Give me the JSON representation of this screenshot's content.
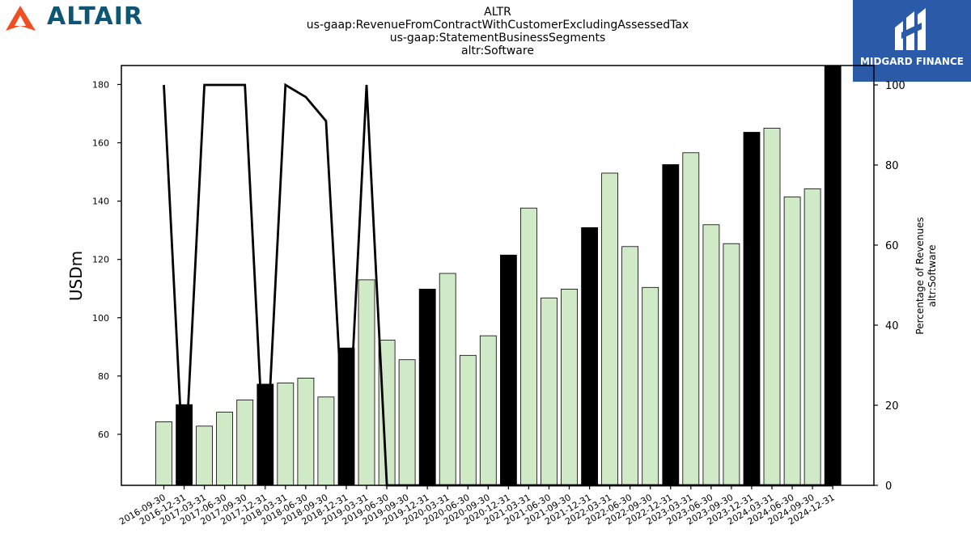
{
  "header": {
    "brand_name": "ALTAIR",
    "badge_name": "MIDGARD FINANCE",
    "colors": {
      "brand": "#0f5675",
      "brand_logo": "#f04e23",
      "badge_bg": "#2a5aa8"
    }
  },
  "chart_data": {
    "type": "bar",
    "title_lines": [
      "ALTR",
      "us-gaap:RevenueFromContractWithCustomerExcludingAssessedTax",
      "us-gaap:StatementBusinessSegments",
      "altr:Software"
    ],
    "ylabel": "USDm",
    "y2label_lines": [
      "Percentage of Revenues",
      "altr:Software"
    ],
    "ylim": [
      42.5,
      186.5
    ],
    "y2lim": [
      0,
      100
    ],
    "yticks": [
      60,
      80,
      100,
      120,
      140,
      160,
      180
    ],
    "y2ticks": [
      0,
      20,
      40,
      60,
      80,
      100
    ],
    "grid": false,
    "categories": [
      "2016-09-30",
      "2016-12-31",
      "2017-03-31",
      "2017-06-30",
      "2017-09-30",
      "2017-12-31",
      "2018-03-31",
      "2018-06-30",
      "2018-09-30",
      "2018-12-31",
      "2019-03-31",
      "2019-06-30",
      "2019-09-30",
      "2019-12-31",
      "2020-03-31",
      "2020-06-30",
      "2020-09-30",
      "2020-12-31",
      "2021-03-31",
      "2021-06-30",
      "2021-09-30",
      "2021-12-31",
      "2022-03-31",
      "2022-06-30",
      "2022-09-30",
      "2022-12-31",
      "2023-03-31",
      "2023-06-30",
      "2023-09-30",
      "2023-12-31",
      "2024-03-31",
      "2024-06-30",
      "2024-09-30",
      "2024-12-31"
    ],
    "bars": {
      "values": [
        64.3,
        70.2,
        62.8,
        67.6,
        71.8,
        77.2,
        77.6,
        79.3,
        72.8,
        89.6,
        113.0,
        92.3,
        85.6,
        109.8,
        115.2,
        87.1,
        93.8,
        121.5,
        137.6,
        106.8,
        109.8,
        130.9,
        149.6,
        124.4,
        110.4,
        152.5,
        156.6,
        131.9,
        125.4,
        163.6,
        165.0,
        141.4,
        144.2,
        186.5
      ],
      "highlight": [
        false,
        true,
        false,
        false,
        false,
        true,
        false,
        false,
        false,
        true,
        false,
        false,
        false,
        true,
        false,
        false,
        false,
        true,
        false,
        false,
        false,
        true,
        false,
        false,
        false,
        true,
        false,
        false,
        false,
        true,
        false,
        false,
        false,
        true
      ],
      "colors": {
        "normal": "#d0e9c6",
        "highlight": "#000000",
        "edge": "#000000"
      }
    },
    "line": {
      "axis": "right",
      "color": "#000000",
      "values": [
        100,
        0,
        100,
        100,
        100,
        0,
        100,
        97,
        91,
        0,
        100,
        0,
        0,
        0,
        0,
        0,
        0,
        0,
        0,
        0,
        0,
        0,
        0,
        0,
        0,
        0,
        0,
        0,
        0,
        0,
        0,
        0,
        0,
        0
      ]
    }
  }
}
